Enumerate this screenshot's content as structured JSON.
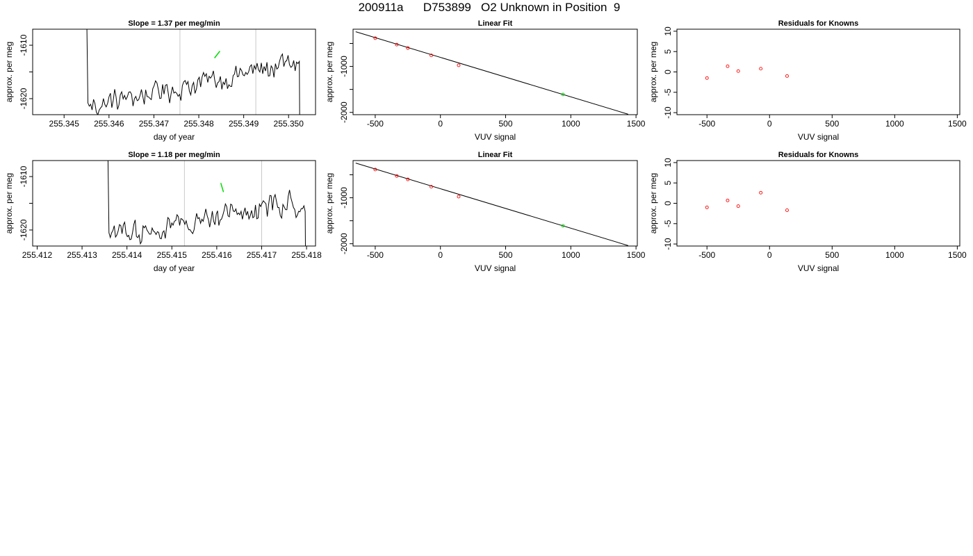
{
  "header": {
    "run_id": "200911a",
    "sample_id": "D753899",
    "description": "O2 Unknown in Position  9"
  },
  "colors": {
    "trace": "#000000",
    "unknown": "#00dd00",
    "known": "#ff0000",
    "boundary": "#c8c8c8"
  },
  "chart_data": [
    {
      "id": "row1-timeseries",
      "type": "line",
      "title": "Slope =  1.37  per meg/min",
      "xlabel": "day of year",
      "ylabel": "approx. per meg",
      "xlim": [
        255.3443,
        255.3506
      ],
      "ylim": [
        -1623.0,
        -1607.0
      ],
      "xticks": [
        255.345,
        255.346,
        255.347,
        255.348,
        255.349,
        255.35
      ],
      "xtick_labels": [
        "255.345",
        "255.346",
        "255.347",
        "255.348",
        "255.349",
        "255.350"
      ],
      "yticks": [
        -1620,
        -1610
      ],
      "ytick_labels": [
        "-1620",
        "-1610"
      ],
      "vlines": [
        255.34758,
        255.34927
      ],
      "trend_slope": 1.37,
      "start": 255.34553,
      "end": 255.35024,
      "unknown_segment": {
        "x": [
          255.34835,
          255.34847
        ],
        "y": [
          -1612.4,
          -1611.1
        ]
      }
    },
    {
      "id": "row1-linearfit",
      "type": "scatter",
      "title": "Linear Fit",
      "xlabel": "VUV signal",
      "ylabel": "approx. per meg",
      "xlim": [
        -670,
        1510
      ],
      "ylim": [
        -2050,
        -190
      ],
      "xticks": [
        -500,
        0,
        500,
        1000,
        1500
      ],
      "xtick_labels": [
        "-500",
        "0",
        "500",
        "1000",
        "1500"
      ],
      "yticks": [
        -2000,
        -1000
      ],
      "ytick_labels": [
        "-2000",
        "-1000"
      ],
      "fit_line": {
        "x": [
          -650,
          1440
        ],
        "y": [
          -245,
          -2040
        ]
      },
      "knowns": {
        "x": [
          -500,
          -335,
          -250,
          -70,
          140
        ],
        "y": [
          -385,
          -525,
          -600,
          -760,
          -975
        ]
      },
      "unknown": {
        "x": [
          940
        ],
        "y": [
          -1610
        ]
      }
    },
    {
      "id": "row1-residuals",
      "type": "scatter",
      "title": "Residuals for Knowns",
      "xlabel": "VUV signal",
      "ylabel": "approx. per meg",
      "xlim": [
        -740,
        1520
      ],
      "ylim": [
        -10.5,
        10.5
      ],
      "xticks": [
        -500,
        0,
        500,
        1000,
        1500
      ],
      "xtick_labels": [
        "-500",
        "0",
        "500",
        "1000",
        "1500"
      ],
      "yticks": [
        -10,
        -5,
        0,
        5,
        10
      ],
      "ytick_labels": [
        "-10",
        "-5",
        "0",
        "5",
        "10"
      ],
      "points": {
        "x": [
          -500,
          -335,
          -250,
          -70,
          140
        ],
        "y": [
          -1.5,
          1.4,
          0.2,
          0.8,
          -1.0
        ]
      }
    },
    {
      "id": "row2-timeseries",
      "type": "line",
      "title": "Slope =  1.18  per meg/min",
      "xlabel": "day of year",
      "ylabel": "approx. per meg",
      "xlim": [
        255.4119,
        255.4182
      ],
      "ylim": [
        -1623.0,
        -1607.0
      ],
      "xticks": [
        255.412,
        255.413,
        255.414,
        255.415,
        255.416,
        255.417,
        255.418
      ],
      "xtick_labels": [
        "255.412",
        "255.413",
        "255.414",
        "255.415",
        "255.416",
        "255.417",
        "255.418"
      ],
      "yticks": [
        -1620,
        -1610
      ],
      "ytick_labels": [
        "-1620",
        "-1610"
      ],
      "vlines": [
        255.41528,
        255.417
      ],
      "trend_slope": 1.18,
      "start": 255.4136,
      "end": 255.41797,
      "unknown_segment": {
        "x": [
          255.41609,
          255.41615
        ],
        "y": [
          -1611.2,
          -1612.9
        ]
      }
    },
    {
      "id": "row2-linearfit",
      "type": "scatter",
      "title": "Linear Fit",
      "xlabel": "VUV signal",
      "ylabel": "approx. per meg",
      "xlim": [
        -670,
        1510
      ],
      "ylim": [
        -2050,
        -190
      ],
      "xticks": [
        -500,
        0,
        500,
        1000,
        1500
      ],
      "xtick_labels": [
        "-500",
        "0",
        "500",
        "1000",
        "1500"
      ],
      "yticks": [
        -2000,
        -1000
      ],
      "ytick_labels": [
        "-2000",
        "-1000"
      ],
      "fit_line": {
        "x": [
          -650,
          1440
        ],
        "y": [
          -245,
          -2040
        ]
      },
      "knowns": {
        "x": [
          -500,
          -335,
          -250,
          -70,
          140
        ],
        "y": [
          -385,
          -525,
          -600,
          -760,
          -975
        ]
      },
      "unknown": {
        "x": [
          940
        ],
        "y": [
          -1610
        ]
      }
    },
    {
      "id": "row2-residuals",
      "type": "scatter",
      "title": "Residuals for Knowns",
      "xlabel": "VUV signal",
      "ylabel": "approx. per meg",
      "xlim": [
        -740,
        1520
      ],
      "ylim": [
        -10.5,
        10.5
      ],
      "xticks": [
        -500,
        0,
        500,
        1000,
        1500
      ],
      "xtick_labels": [
        "-500",
        "0",
        "500",
        "1000",
        "1500"
      ],
      "yticks": [
        -10,
        -5,
        0,
        5,
        10
      ],
      "ytick_labels": [
        "-10",
        "-5",
        "0",
        "5",
        "10"
      ],
      "points": {
        "x": [
          -500,
          -335,
          -250,
          -70,
          140
        ],
        "y": [
          -1.0,
          0.7,
          -0.7,
          2.6,
          -1.7
        ]
      }
    }
  ]
}
